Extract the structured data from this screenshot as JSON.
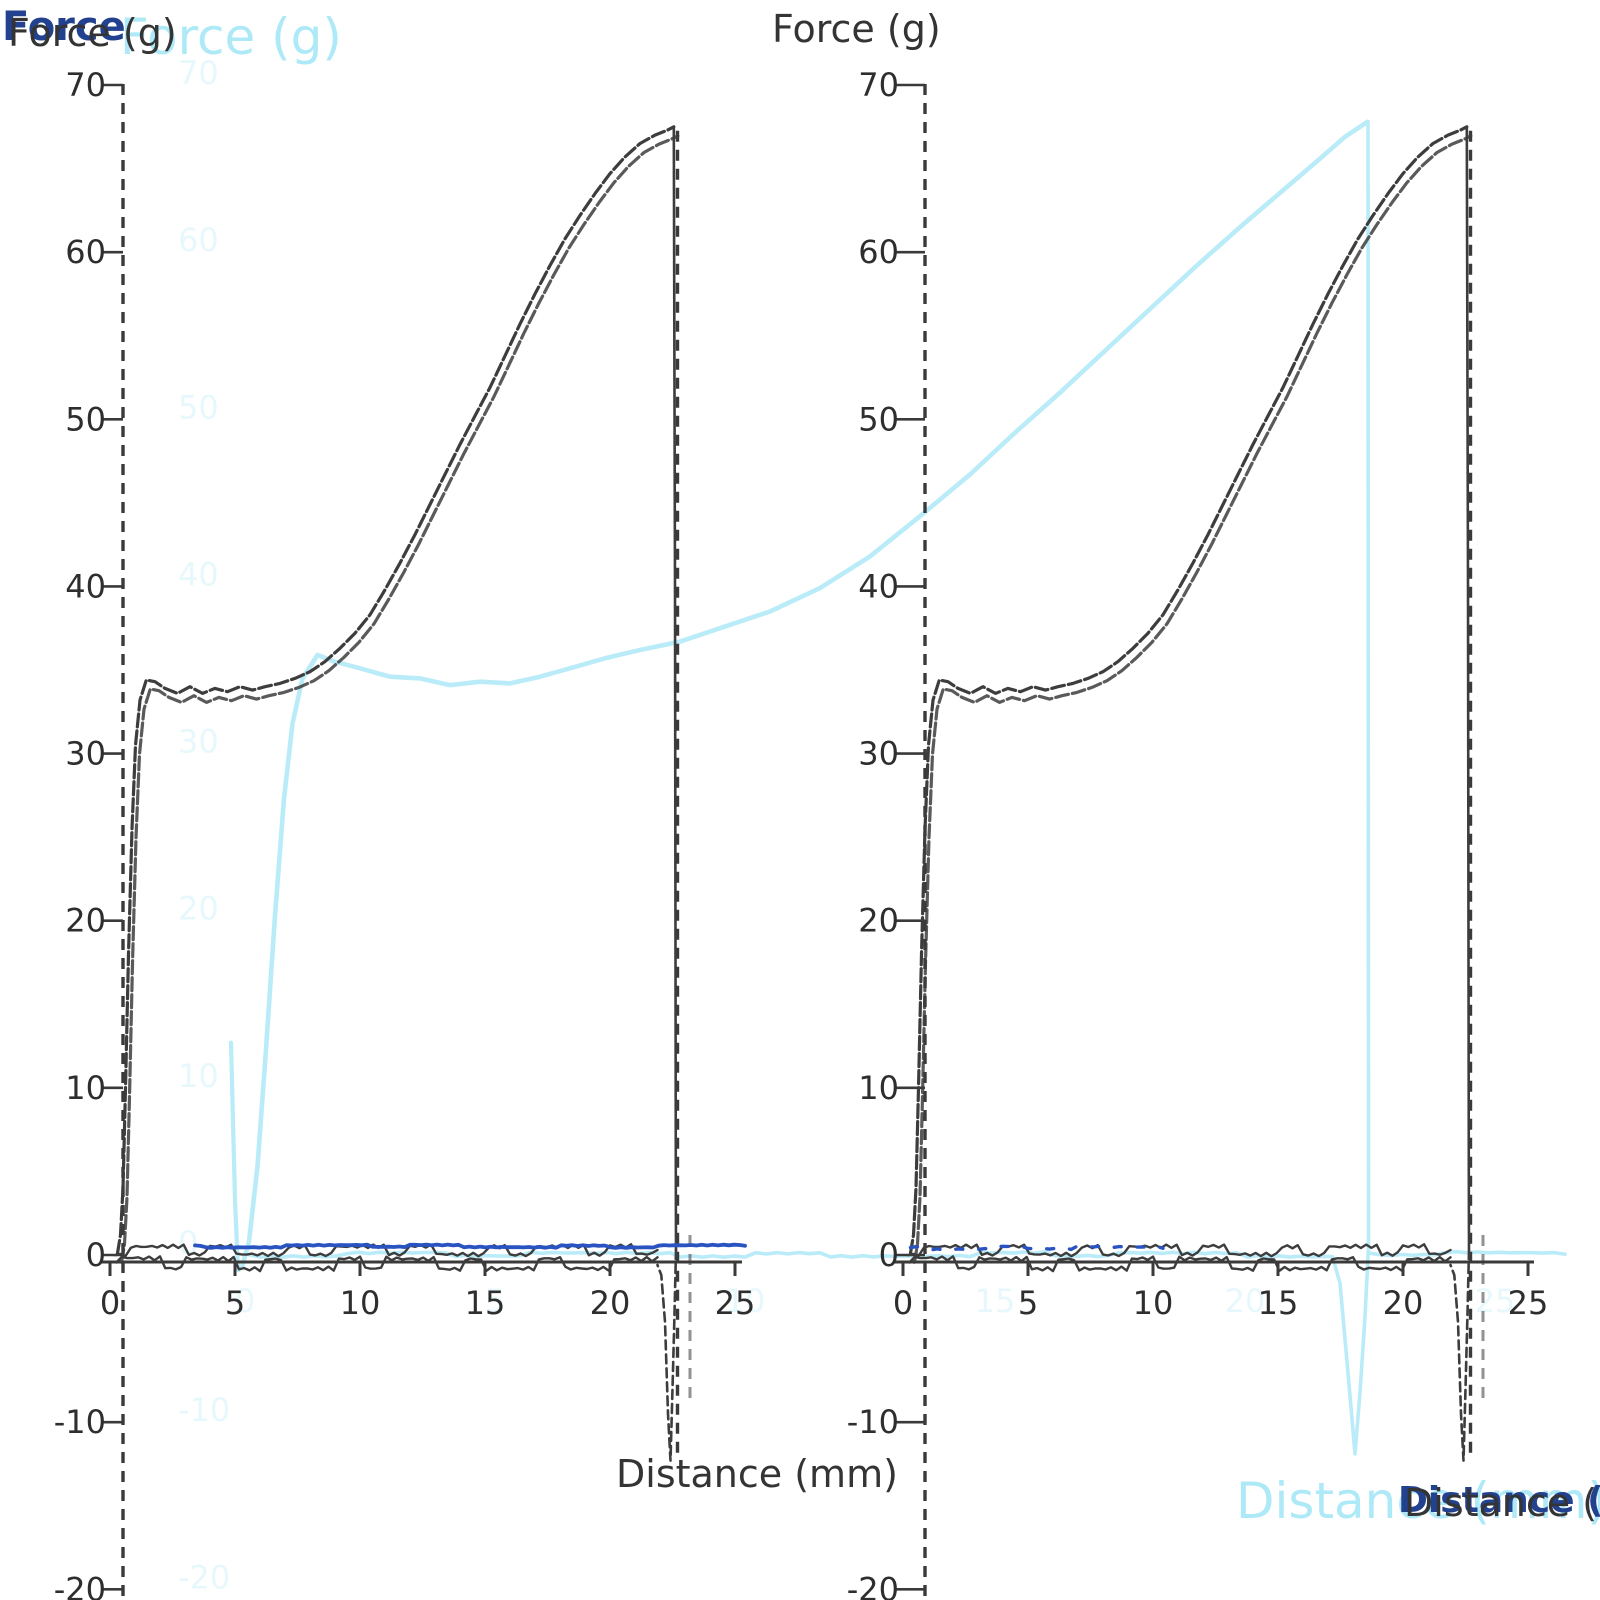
{
  "figure": {
    "labels": {
      "force_navy": "Force",
      "force_left": "Force (g)",
      "force_cyan": "Force (g)",
      "force_right": "Force (g)",
      "distance_left": "Distance (mm)",
      "distance_cyan": "Distance (mm)",
      "distance_right": "Distance (mm)"
    },
    "colors": {
      "dark": "#3d3d3d",
      "cyan": "#b9ecf8",
      "navy": "#2953c0",
      "ghost": "#c9f0fa",
      "axis": "#3a3a3a"
    }
  },
  "chart_data": [
    {
      "id": "left",
      "type": "line",
      "title": "Force (g)",
      "xlabel": "Distance (mm)",
      "ylabel": "Force (g)",
      "xlim": [
        0,
        25
      ],
      "ylim": [
        -20,
        70
      ],
      "xticks": [
        0,
        5,
        10,
        15,
        20,
        25
      ],
      "yticks": [
        70,
        60,
        50,
        40,
        30,
        20,
        10,
        0,
        -10,
        -20
      ],
      "grid": false,
      "legend": "none",
      "markers": {
        "start_x": 0.52,
        "end_x": 22.7,
        "end_echo_x": 23.2
      },
      "peak": {
        "x": 22.55,
        "y": 67.5
      },
      "adhesion_min": -12.3,
      "series_color": "dark",
      "segments": [
        {
          "name": "compression",
          "color": "dark",
          "w": 3.2,
          "dash": "13 4",
          "double": true,
          "points": [
            [
              0.3,
              0.1
            ],
            [
              0.42,
              1.2
            ],
            [
              0.52,
              4
            ],
            [
              0.62,
              10
            ],
            [
              0.74,
              18
            ],
            [
              0.88,
              25.5
            ],
            [
              1.02,
              30.5
            ],
            [
              1.2,
              33.2
            ],
            [
              1.45,
              34.4
            ],
            [
              1.8,
              34.3
            ],
            [
              2.2,
              33.9
            ],
            [
              2.7,
              33.6
            ],
            [
              3.2,
              34.0
            ],
            [
              3.7,
              33.6
            ],
            [
              4.2,
              33.9
            ],
            [
              4.7,
              33.7
            ],
            [
              5.2,
              34.0
            ],
            [
              5.7,
              33.8
            ],
            [
              6.2,
              34.0
            ],
            [
              6.8,
              34.2
            ],
            [
              7.4,
              34.5
            ],
            [
              8.0,
              34.9
            ],
            [
              8.6,
              35.5
            ],
            [
              9.2,
              36.3
            ],
            [
              9.8,
              37.2
            ],
            [
              10.4,
              38.3
            ],
            [
              11.0,
              39.8
            ],
            [
              11.6,
              41.4
            ],
            [
              12.2,
              43.1
            ],
            [
              12.8,
              44.9
            ],
            [
              13.4,
              46.7
            ],
            [
              14.0,
              48.5
            ],
            [
              14.6,
              50.2
            ],
            [
              15.2,
              51.9
            ],
            [
              15.8,
              53.8
            ],
            [
              16.4,
              55.7
            ],
            [
              17.0,
              57.5
            ],
            [
              17.6,
              59.2
            ],
            [
              18.2,
              60.8
            ],
            [
              18.8,
              62.2
            ],
            [
              19.4,
              63.5
            ],
            [
              20.0,
              64.7
            ],
            [
              20.6,
              65.7
            ],
            [
              21.2,
              66.5
            ],
            [
              21.8,
              67.0
            ],
            [
              22.3,
              67.3
            ],
            [
              22.55,
              67.5
            ]
          ]
        },
        {
          "name": "peak-drop",
          "color": "dark",
          "w": 2.6,
          "points": [
            [
              22.55,
              67.5
            ],
            [
              22.6,
              40
            ],
            [
              22.63,
              5
            ],
            [
              22.64,
              0.3
            ]
          ]
        },
        {
          "name": "adhesion-dip",
          "color": "dark",
          "w": 2.6,
          "dash": "9 5",
          "points": [
            [
              22.64,
              0.3
            ],
            [
              22.58,
              -3.5
            ],
            [
              22.5,
              -8
            ],
            [
              22.42,
              -12.3
            ],
            [
              22.32,
              -9.5
            ],
            [
              22.2,
              -4
            ],
            [
              22.05,
              -1.2
            ],
            [
              21.9,
              -0.6
            ]
          ]
        },
        {
          "name": "return-baseline",
          "color": "dark",
          "w": 2.4,
          "jitter": 0.42,
          "points": [
            [
              21.9,
              -0.55
            ],
            [
              18,
              -0.5
            ],
            [
              14,
              -0.55
            ],
            [
              10,
              -0.5
            ],
            [
              6,
              -0.55
            ],
            [
              2,
              -0.5
            ],
            [
              0.25,
              -0.45
            ]
          ]
        },
        {
          "name": "outbound-baseline",
          "color": "dark",
          "w": 2.4,
          "jitter": 0.34,
          "points": [
            [
              0.2,
              0.25
            ],
            [
              4,
              0.3
            ],
            [
              8,
              0.25
            ],
            [
              12,
              0.3
            ],
            [
              16,
              0.25
            ],
            [
              20,
              0.3
            ],
            [
              21.9,
              0.3
            ]
          ]
        },
        {
          "name": "navy-baseline-line",
          "color": "navy",
          "w": 3.8,
          "jitter": 0.08,
          "points": [
            [
              3.4,
              0.5
            ],
            [
              12,
              0.55
            ],
            [
              20,
              0.5
            ],
            [
              25.4,
              0.55
            ]
          ]
        }
      ]
    },
    {
      "id": "right",
      "type": "line",
      "title": "Force (g)",
      "xlabel": "Distance (mm)",
      "ylabel": "Force (g)",
      "xlim": [
        0,
        25
      ],
      "ylim": [
        -20,
        70
      ],
      "xticks": [
        0,
        5,
        10,
        15,
        20,
        25
      ],
      "yticks": [
        70,
        60,
        50,
        40,
        30,
        20,
        10,
        0,
        -10,
        -20
      ],
      "grid": false,
      "legend": "none",
      "markers": {
        "start_x": 0.88,
        "end_x": 22.7,
        "end_echo_x": 23.2
      },
      "peak": {
        "x": 22.55,
        "y": 67.5
      },
      "adhesion_min": -12.3,
      "series_color": "dark",
      "segments": [
        {
          "name": "compression",
          "color": "dark",
          "w": 3.2,
          "dash": "13 4",
          "double": true,
          "points": [
            [
              0.3,
              0.1
            ],
            [
              0.42,
              1.2
            ],
            [
              0.52,
              4
            ],
            [
              0.62,
              10
            ],
            [
              0.74,
              18
            ],
            [
              0.88,
              25.5
            ],
            [
              1.02,
              30.5
            ],
            [
              1.2,
              33.2
            ],
            [
              1.45,
              34.4
            ],
            [
              1.8,
              34.3
            ],
            [
              2.2,
              33.9
            ],
            [
              2.7,
              33.6
            ],
            [
              3.2,
              34.0
            ],
            [
              3.7,
              33.6
            ],
            [
              4.2,
              33.9
            ],
            [
              4.7,
              33.7
            ],
            [
              5.2,
              34.0
            ],
            [
              5.7,
              33.8
            ],
            [
              6.2,
              34.0
            ],
            [
              6.8,
              34.2
            ],
            [
              7.4,
              34.5
            ],
            [
              8.0,
              34.9
            ],
            [
              8.6,
              35.5
            ],
            [
              9.2,
              36.3
            ],
            [
              9.8,
              37.2
            ],
            [
              10.4,
              38.3
            ],
            [
              11.0,
              39.8
            ],
            [
              11.6,
              41.4
            ],
            [
              12.2,
              43.1
            ],
            [
              12.8,
              44.9
            ],
            [
              13.4,
              46.7
            ],
            [
              14.0,
              48.5
            ],
            [
              14.6,
              50.2
            ],
            [
              15.2,
              51.9
            ],
            [
              15.8,
              53.8
            ],
            [
              16.4,
              55.7
            ],
            [
              17.0,
              57.5
            ],
            [
              17.6,
              59.2
            ],
            [
              18.2,
              60.8
            ],
            [
              18.8,
              62.2
            ],
            [
              19.4,
              63.5
            ],
            [
              20.0,
              64.7
            ],
            [
              20.6,
              65.7
            ],
            [
              21.2,
              66.5
            ],
            [
              21.8,
              67.0
            ],
            [
              22.3,
              67.3
            ],
            [
              22.55,
              67.5
            ]
          ]
        },
        {
          "name": "peak-drop",
          "color": "dark",
          "w": 2.6,
          "points": [
            [
              22.55,
              67.5
            ],
            [
              22.6,
              40
            ],
            [
              22.63,
              5
            ],
            [
              22.64,
              0.3
            ]
          ]
        },
        {
          "name": "adhesion-dip",
          "color": "dark",
          "w": 2.6,
          "dash": "9 5",
          "points": [
            [
              22.64,
              0.3
            ],
            [
              22.58,
              -3.5
            ],
            [
              22.5,
              -8
            ],
            [
              22.42,
              -12.3
            ],
            [
              22.32,
              -9.5
            ],
            [
              22.2,
              -4
            ],
            [
              22.05,
              -1.2
            ],
            [
              21.9,
              -0.6
            ]
          ]
        },
        {
          "name": "return-baseline",
          "color": "dark",
          "w": 2.4,
          "jitter": 0.42,
          "points": [
            [
              21.9,
              -0.55
            ],
            [
              18,
              -0.5
            ],
            [
              14,
              -0.55
            ],
            [
              10,
              -0.5
            ],
            [
              6,
              -0.55
            ],
            [
              2,
              -0.5
            ],
            [
              0.25,
              -0.45
            ]
          ]
        },
        {
          "name": "outbound-baseline",
          "color": "dark",
          "w": 2.4,
          "jitter": 0.34,
          "points": [
            [
              0.2,
              0.25
            ],
            [
              4,
              0.3
            ],
            [
              8,
              0.25
            ],
            [
              12,
              0.3
            ],
            [
              16,
              0.25
            ],
            [
              20,
              0.3
            ],
            [
              21.9,
              0.3
            ]
          ]
        },
        {
          "name": "navy-baseline-dashes",
          "color": "navy",
          "w": 3.4,
          "dash": "7 16",
          "jitter": 0.1,
          "points": [
            [
              0.3,
              0.4
            ],
            [
              5,
              0.45
            ],
            [
              10.4,
              0.4
            ]
          ]
        }
      ]
    },
    {
      "id": "cyan",
      "type": "line",
      "title": "Force (g)",
      "xlabel": "Distance (mm)",
      "ylabel": "Force (g)",
      "xlim": [
        0,
        25
      ],
      "ylim": [
        -20,
        70
      ],
      "xticks": [
        0,
        5,
        10,
        15,
        20,
        25
      ],
      "yticks": [
        70,
        60,
        50,
        40,
        30,
        20,
        10,
        0,
        -10,
        -20
      ],
      "grid": false,
      "legend": "none",
      "peak": {
        "x": 22.45,
        "y": 67.5
      },
      "adhesion_min": -12.2,
      "series_color": "cyan",
      "segments": [
        {
          "name": "trigger-spike",
          "color": "cyan",
          "w": 4.2,
          "points": [
            [
              -0.28,
              12.4
            ],
            [
              -0.2,
              3
            ],
            [
              -0.14,
              -1.2
            ],
            [
              -0.06,
              -1.0
            ]
          ]
        },
        {
          "name": "compression",
          "color": "cyan",
          "w": 4.6,
          "points": [
            [
              -0.06,
              -1.0
            ],
            [
              0.08,
              0.5
            ],
            [
              0.25,
              5
            ],
            [
              0.42,
              12
            ],
            [
              0.6,
              20
            ],
            [
              0.78,
              27
            ],
            [
              0.95,
              31.5
            ],
            [
              1.15,
              34.2
            ],
            [
              1.45,
              35.6
            ],
            [
              1.8,
              35.2
            ],
            [
              2.3,
              34.8
            ],
            [
              2.9,
              34.3
            ],
            [
              3.5,
              34.2
            ],
            [
              4.1,
              33.8
            ],
            [
              4.7,
              34.0
            ],
            [
              5.3,
              33.9
            ],
            [
              5.9,
              34.3
            ],
            [
              6.5,
              34.8
            ],
            [
              7.2,
              35.4
            ],
            [
              7.9,
              35.9
            ],
            [
              8.7,
              36.4
            ],
            [
              9.5,
              37.2
            ],
            [
              10.5,
              38.2
            ],
            [
              11.5,
              39.6
            ],
            [
              12.5,
              41.5
            ],
            [
              13.5,
              43.9
            ],
            [
              14.5,
              46.4
            ],
            [
              15.4,
              48.9
            ],
            [
              16.3,
              51.3
            ],
            [
              17.2,
              53.8
            ],
            [
              18.1,
              56.3
            ],
            [
              19.0,
              58.8
            ],
            [
              19.9,
              61.2
            ],
            [
              20.8,
              63.5
            ],
            [
              21.5,
              65.3
            ],
            [
              22.0,
              66.6
            ],
            [
              22.3,
              67.2
            ],
            [
              22.45,
              67.5
            ]
          ]
        },
        {
          "name": "peak-drop",
          "color": "cyan",
          "w": 3.6,
          "points": [
            [
              22.46,
              67.5
            ],
            [
              22.47,
              5
            ],
            [
              22.47,
              0.2
            ]
          ]
        },
        {
          "name": "adhesion-dip",
          "color": "cyan",
          "w": 3.6,
          "points": [
            [
              22.47,
              0.2
            ],
            [
              22.4,
              -4
            ],
            [
              22.3,
              -8.5
            ],
            [
              22.2,
              -12.2
            ],
            [
              22.05,
              -7
            ],
            [
              21.9,
              -2
            ],
            [
              21.75,
              -0.4
            ]
          ]
        },
        {
          "name": "return-baseline",
          "color": "cyan",
          "w": 3.6,
          "jitter": 0.14,
          "points": [
            [
              21.75,
              -0.3
            ],
            [
              16,
              -0.25
            ],
            [
              10,
              -0.3
            ],
            [
              4,
              -0.25
            ],
            [
              0.1,
              -0.3
            ]
          ]
        },
        {
          "name": "idle-baseline",
          "color": "cyan",
          "w": 3.6,
          "jitter": 0.1,
          "points": [
            [
              22.5,
              -0.25
            ],
            [
              24,
              -0.2
            ],
            [
              26.4,
              -0.25
            ]
          ]
        }
      ]
    }
  ]
}
